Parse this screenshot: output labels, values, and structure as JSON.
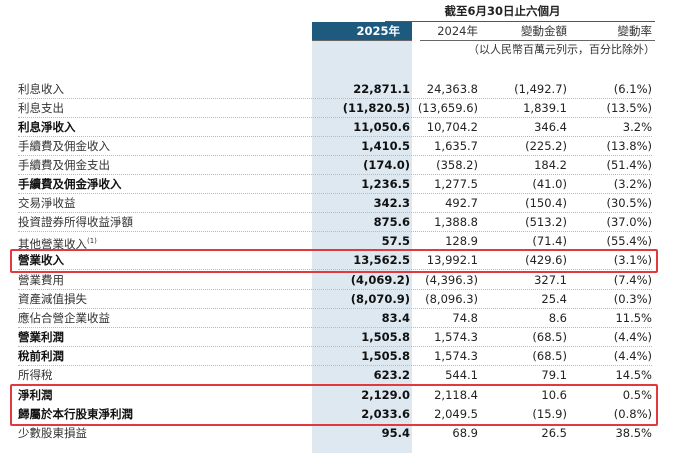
{
  "header": {
    "period": "截至6月30日止六個月",
    "col_2025": "2025年",
    "col_2024": "2024年",
    "col_change": "變動金額",
    "col_rate": "變動率",
    "unit_note": "（以人民幣百萬元列示，百分比除外）"
  },
  "rows": [
    {
      "label": "利息收入",
      "v2025": "22,871.1",
      "v2024": "24,363.8",
      "change": "(1,492.7)",
      "rate": "(6.1%)"
    },
    {
      "label": "利息支出",
      "v2025": "(11,820.5)",
      "v2024": "(13,659.6)",
      "change": "1,839.1",
      "rate": "(13.5%)"
    },
    {
      "label": "利息淨收入",
      "v2025": "11,050.6",
      "v2024": "10,704.2",
      "change": "346.4",
      "rate": "3.2%"
    },
    {
      "label": "手續費及佣金收入",
      "v2025": "1,410.5",
      "v2024": "1,635.7",
      "change": "(225.2)",
      "rate": "(13.8%)"
    },
    {
      "label": "手續費及佣金支出",
      "v2025": "(174.0)",
      "v2024": "(358.2)",
      "change": "184.2",
      "rate": "(51.4%)"
    },
    {
      "label": "手續費及佣金淨收入",
      "v2025": "1,236.5",
      "v2024": "1,277.5",
      "change": "(41.0)",
      "rate": "(3.2%)"
    },
    {
      "label": "交易淨收益",
      "v2025": "342.3",
      "v2024": "492.7",
      "change": "(150.4)",
      "rate": "(30.5%)"
    },
    {
      "label": "投資證券所得收益淨額",
      "v2025": "875.6",
      "v2024": "1,388.8",
      "change": "(513.2)",
      "rate": "(37.0%)"
    },
    {
      "label": "其他營業收入",
      "footnote": "(1)",
      "v2025": "57.5",
      "v2024": "128.9",
      "change": "(71.4)",
      "rate": "(55.4%)"
    },
    {
      "label": "營業收入",
      "v2025": "13,562.5",
      "v2024": "13,992.1",
      "change": "(429.6)",
      "rate": "(3.1%)"
    },
    {
      "label": "營業費用",
      "v2025": "(4,069.2)",
      "v2024": "(4,396.3)",
      "change": "327.1",
      "rate": "(7.4%)"
    },
    {
      "label": "資產減值損失",
      "v2025": "(8,070.9)",
      "v2024": "(8,096.3)",
      "change": "25.4",
      "rate": "(0.3%)"
    },
    {
      "label": "應佔合營企業收益",
      "v2025": "83.4",
      "v2024": "74.8",
      "change": "8.6",
      "rate": "11.5%"
    },
    {
      "label": "營業利潤",
      "v2025": "1,505.8",
      "v2024": "1,574.3",
      "change": "(68.5)",
      "rate": "(4.4%)"
    },
    {
      "label": "稅前利潤",
      "v2025": "1,505.8",
      "v2024": "1,574.3",
      "change": "(68.5)",
      "rate": "(4.4%)"
    },
    {
      "label": "所得稅",
      "v2025": "623.2",
      "v2024": "544.1",
      "change": "79.1",
      "rate": "14.5%"
    },
    {
      "label": "淨利潤",
      "v2025": "2,129.0",
      "v2024": "2,118.4",
      "change": "10.6",
      "rate": "0.5%"
    },
    {
      "label": "歸屬於本行股東淨利潤",
      "v2025": "2,033.6",
      "v2024": "2,049.5",
      "change": "(15.9)",
      "rate": "(0.8%)"
    },
    {
      "label": "少數股東損益",
      "v2025": "95.4",
      "v2024": "68.9",
      "change": "26.5",
      "rate": "38.5%"
    }
  ],
  "highlight_color": "#e0393e",
  "header_fill_color": "#1e5a7e",
  "column_shade_color": "#dde8f0"
}
